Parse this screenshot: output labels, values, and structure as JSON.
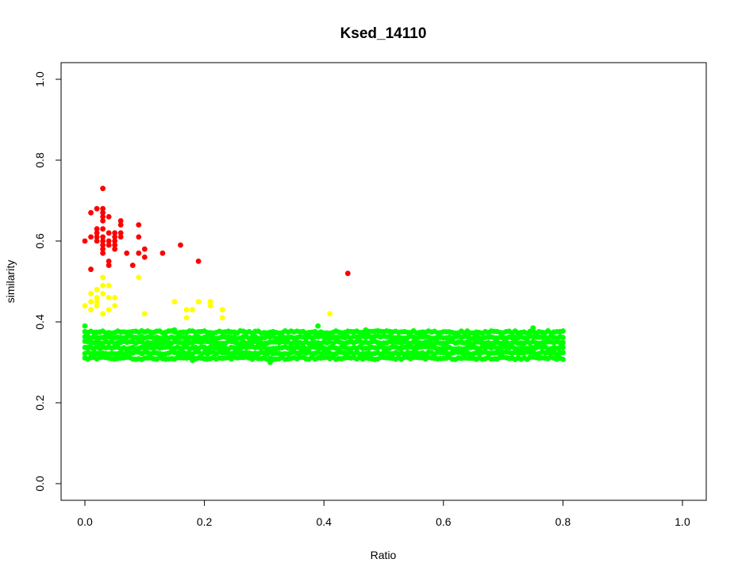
{
  "chart_data": {
    "type": "scatter",
    "title": "Ksed_14110",
    "xlabel": "Ratio",
    "ylabel": "similarity",
    "xlim": [
      0,
      1
    ],
    "ylim": [
      0,
      1
    ],
    "x_ticks": [
      "0.0",
      "0.2",
      "0.4",
      "0.6",
      "0.8",
      "1.0"
    ],
    "y_ticks": [
      "0.0",
      "0.2",
      "0.4",
      "0.6",
      "0.8",
      "1.0"
    ],
    "grid": false,
    "legend": "none",
    "series": [
      {
        "color": "#FF0000",
        "points": [
          [
            0.0,
            0.6
          ],
          [
            0.01,
            0.67
          ],
          [
            0.01,
            0.61
          ],
          [
            0.01,
            0.53
          ],
          [
            0.02,
            0.68
          ],
          [
            0.02,
            0.63
          ],
          [
            0.02,
            0.62
          ],
          [
            0.02,
            0.61
          ],
          [
            0.02,
            0.6
          ],
          [
            0.03,
            0.73
          ],
          [
            0.03,
            0.68
          ],
          [
            0.03,
            0.67
          ],
          [
            0.03,
            0.66
          ],
          [
            0.03,
            0.65
          ],
          [
            0.03,
            0.63
          ],
          [
            0.03,
            0.61
          ],
          [
            0.03,
            0.6
          ],
          [
            0.03,
            0.59
          ],
          [
            0.03,
            0.58
          ],
          [
            0.03,
            0.57
          ],
          [
            0.04,
            0.66
          ],
          [
            0.04,
            0.62
          ],
          [
            0.04,
            0.6
          ],
          [
            0.04,
            0.59
          ],
          [
            0.04,
            0.55
          ],
          [
            0.04,
            0.54
          ],
          [
            0.05,
            0.62
          ],
          [
            0.05,
            0.61
          ],
          [
            0.05,
            0.6
          ],
          [
            0.05,
            0.59
          ],
          [
            0.05,
            0.58
          ],
          [
            0.06,
            0.65
          ],
          [
            0.06,
            0.64
          ],
          [
            0.06,
            0.62
          ],
          [
            0.06,
            0.61
          ],
          [
            0.07,
            0.57
          ],
          [
            0.08,
            0.54
          ],
          [
            0.09,
            0.64
          ],
          [
            0.09,
            0.61
          ],
          [
            0.09,
            0.57
          ],
          [
            0.1,
            0.58
          ],
          [
            0.1,
            0.56
          ],
          [
            0.13,
            0.57
          ],
          [
            0.16,
            0.59
          ],
          [
            0.19,
            0.55
          ],
          [
            0.44,
            0.52
          ]
        ]
      },
      {
        "color": "#FFFF00",
        "points": [
          [
            0.0,
            0.44
          ],
          [
            0.01,
            0.47
          ],
          [
            0.01,
            0.45
          ],
          [
            0.01,
            0.43
          ],
          [
            0.02,
            0.48
          ],
          [
            0.02,
            0.46
          ],
          [
            0.02,
            0.45
          ],
          [
            0.02,
            0.44
          ],
          [
            0.03,
            0.51
          ],
          [
            0.03,
            0.49
          ],
          [
            0.03,
            0.47
          ],
          [
            0.03,
            0.42
          ],
          [
            0.04,
            0.49
          ],
          [
            0.04,
            0.46
          ],
          [
            0.04,
            0.43
          ],
          [
            0.05,
            0.46
          ],
          [
            0.05,
            0.44
          ],
          [
            0.09,
            0.51
          ],
          [
            0.1,
            0.42
          ],
          [
            0.15,
            0.45
          ],
          [
            0.17,
            0.43
          ],
          [
            0.17,
            0.41
          ],
          [
            0.18,
            0.43
          ],
          [
            0.19,
            0.45
          ],
          [
            0.21,
            0.45
          ],
          [
            0.21,
            0.44
          ],
          [
            0.23,
            0.43
          ],
          [
            0.23,
            0.41
          ],
          [
            0.41,
            0.42
          ]
        ]
      },
      {
        "color": "#00FF00",
        "x_range": [
          0.0,
          0.8
        ],
        "x_step": 0.005,
        "y_min": 0.31,
        "y_max": 0.375,
        "extra_points": [
          [
            0.0,
            0.39
          ],
          [
            0.39,
            0.39
          ],
          [
            0.15,
            0.38
          ],
          [
            0.47,
            0.38
          ],
          [
            0.75,
            0.385
          ],
          [
            0.31,
            0.3
          ],
          [
            0.18,
            0.305
          ]
        ]
      }
    ]
  }
}
